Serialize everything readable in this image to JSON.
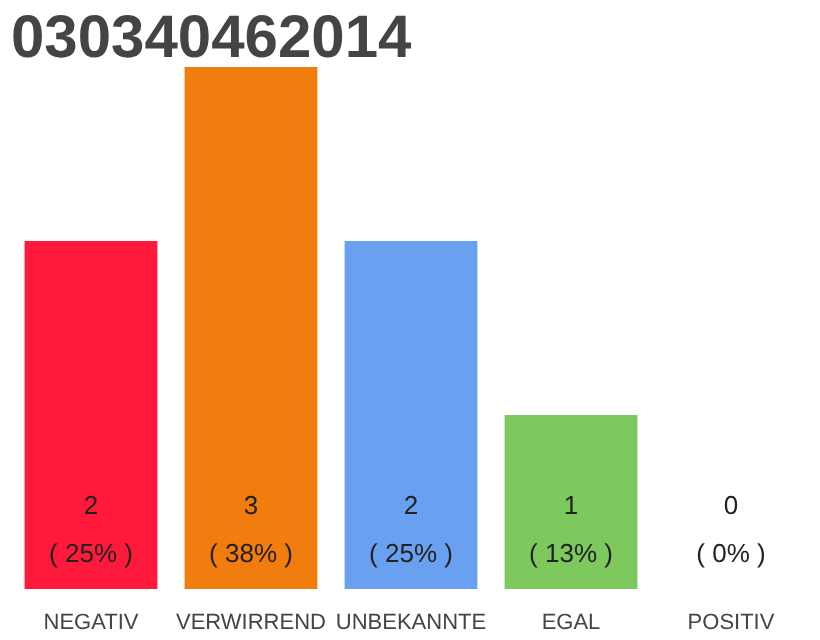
{
  "chart_data": {
    "type": "bar",
    "title": "030340462014",
    "categories": [
      "NEGATIV",
      "VERWIRREND",
      "UNBEKANNTE",
      "EGAL",
      "POSITIV"
    ],
    "values": [
      2,
      3,
      2,
      1,
      0
    ],
    "colors": [
      "#ff1a3c",
      "#f07d0e",
      "#6aa0f0",
      "#7dc95e",
      "#bbbbbb"
    ],
    "value_labels": [
      "2\n( 25% )",
      "3\n( 38% )",
      "2\n( 25% )",
      "1\n( 13% )",
      "0\n( 0% )"
    ],
    "grid": false
  }
}
